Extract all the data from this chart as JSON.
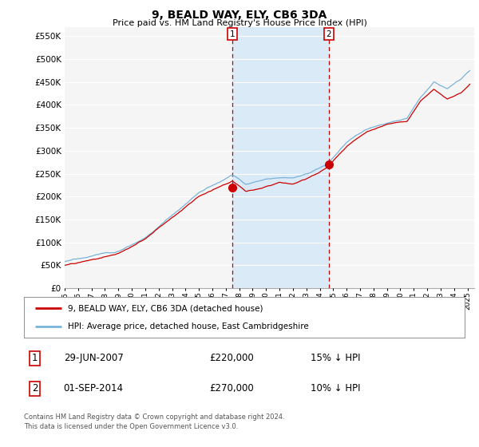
{
  "title": "9, BEALD WAY, ELY, CB6 3DA",
  "subtitle": "Price paid vs. HM Land Registry's House Price Index (HPI)",
  "ylabel_ticks": [
    "£0",
    "£50K",
    "£100K",
    "£150K",
    "£200K",
    "£250K",
    "£300K",
    "£350K",
    "£400K",
    "£450K",
    "£500K",
    "£550K"
  ],
  "ytick_vals": [
    0,
    50000,
    100000,
    150000,
    200000,
    250000,
    300000,
    350000,
    400000,
    450000,
    500000,
    550000
  ],
  "ylim": [
    0,
    570000
  ],
  "xlim_start": 1995.0,
  "xlim_end": 2025.5,
  "hpi_color": "#7ab3d8",
  "price_color": "#cc0000",
  "sale1_date": 2007.49,
  "sale1_price": 220000,
  "sale2_date": 2014.67,
  "sale2_price": 270000,
  "shade_color": "#daeaf6",
  "vline_color": "#cc0000",
  "legend_label1": "9, BEALD WAY, ELY, CB6 3DA (detached house)",
  "legend_label2": "HPI: Average price, detached house, East Cambridgeshire",
  "table_row1": [
    "1",
    "29-JUN-2007",
    "£220,000",
    "15% ↓ HPI"
  ],
  "table_row2": [
    "2",
    "01-SEP-2014",
    "£270,000",
    "10% ↓ HPI"
  ],
  "footnote": "Contains HM Land Registry data © Crown copyright and database right 2024.\nThis data is licensed under the Open Government Licence v3.0.",
  "background_color": "#ffffff",
  "plot_bg_color": "#f5f5f5"
}
